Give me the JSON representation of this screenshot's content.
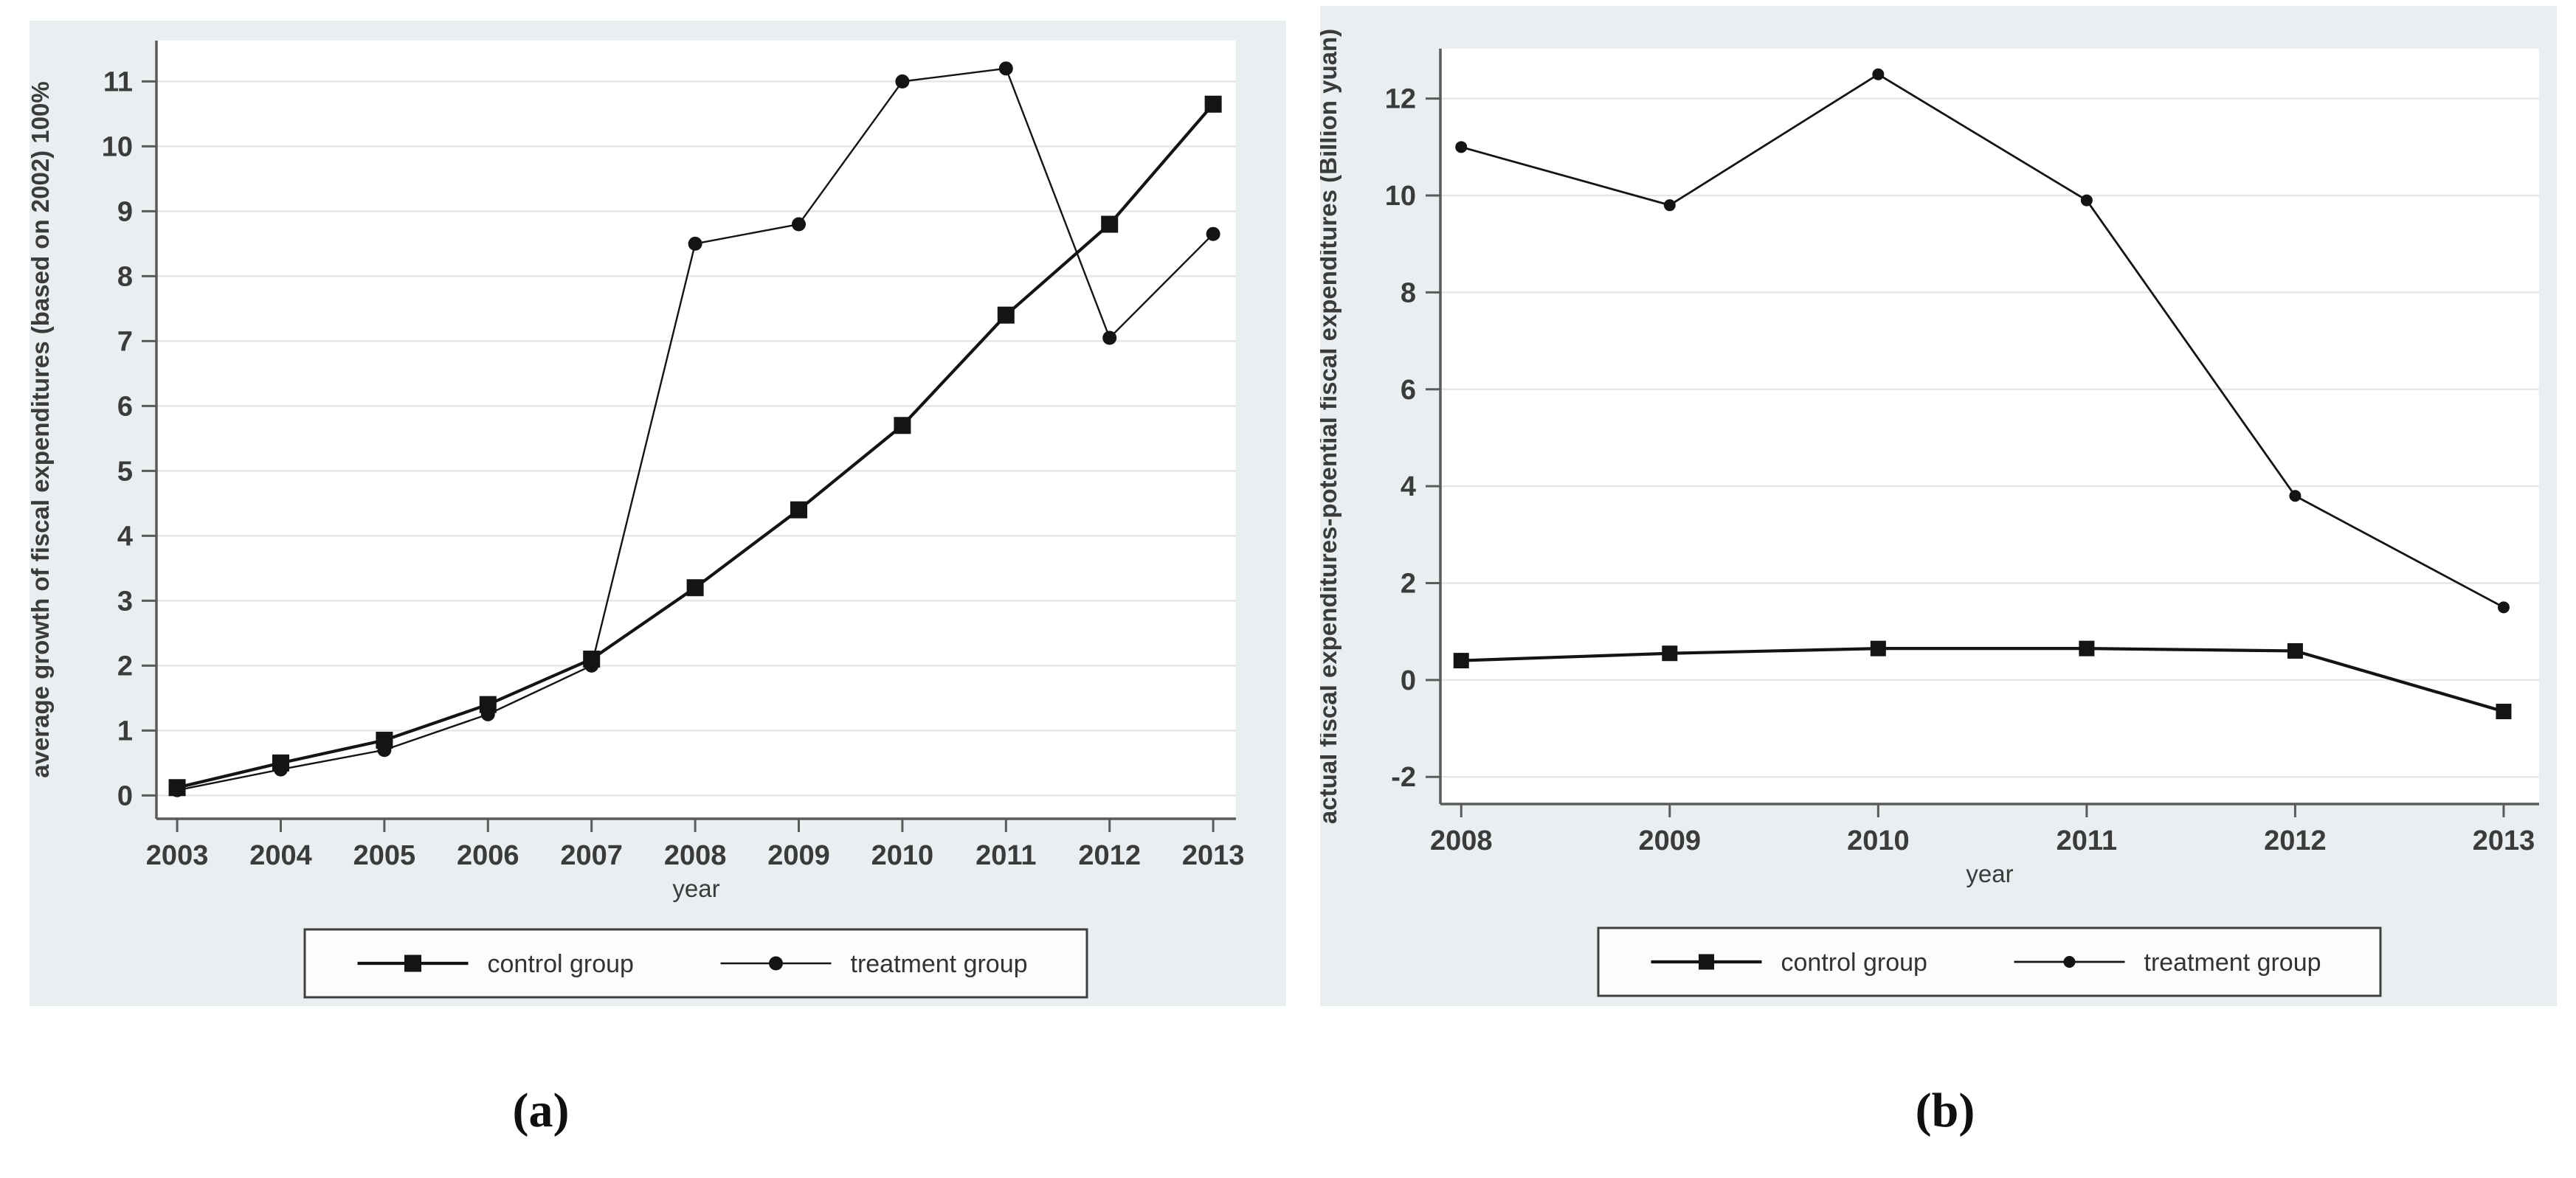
{
  "figure": {
    "page_background": "#ffffff",
    "panel_background": "#e9eef1",
    "plot_background": "#ffffff",
    "grid_color": "#e9e5e5",
    "axis_color": "#5a5a5a",
    "tick_text_color": "#3b3b3b",
    "series_color": "#141414",
    "legend_background": "#fcfcfc",
    "legend_border": "#3f3f3f"
  },
  "captions": {
    "a": "(a)",
    "b": "(b)"
  },
  "chart_data": [
    {
      "type": "line",
      "panel": "a",
      "title": "",
      "xlabel": "year",
      "ylabel": "average growth of fiscal expenditures (based on 2002) 100%",
      "x": [
        2003,
        2004,
        2005,
        2006,
        2007,
        2008,
        2009,
        2010,
        2011,
        2012,
        2013
      ],
      "xlim": [
        2002.8,
        2013.22
      ],
      "yticks": [
        0,
        1,
        2,
        3,
        4,
        5,
        6,
        7,
        8,
        9,
        10,
        11
      ],
      "ylim": [
        -0.36,
        11.63
      ],
      "grid": "horizontal",
      "legend_position": "bottom-center",
      "series": [
        {
          "name": "control group",
          "marker": "square",
          "values": [
            0.12,
            0.5,
            0.85,
            1.4,
            2.1,
            3.2,
            4.4,
            5.7,
            7.4,
            8.8,
            10.65
          ]
        },
        {
          "name": "treatment group",
          "marker": "circle",
          "values": [
            0.08,
            0.4,
            0.7,
            1.25,
            2.0,
            8.5,
            8.8,
            11.0,
            11.2,
            7.05,
            8.65
          ]
        }
      ]
    },
    {
      "type": "line",
      "panel": "b",
      "title": "",
      "xlabel": "year",
      "ylabel": "actual fiscal expenditures-potential fiscal expenditures (Billion yuan)",
      "x": [
        2008,
        2009,
        2010,
        2011,
        2012,
        2013
      ],
      "xlim": [
        2007.9,
        2013.17
      ],
      "yticks": [
        -2,
        0,
        2,
        4,
        6,
        8,
        10,
        12
      ],
      "ylim": [
        -2.56,
        13.03
      ],
      "grid": "horizontal",
      "legend_position": "bottom-center",
      "series": [
        {
          "name": "control group",
          "marker": "square",
          "values": [
            0.4,
            0.55,
            0.65,
            0.65,
            0.6,
            -0.65
          ]
        },
        {
          "name": "treatment group",
          "marker": "circle",
          "values": [
            11.0,
            9.8,
            12.5,
            9.9,
            3.8,
            1.5
          ]
        }
      ]
    }
  ]
}
